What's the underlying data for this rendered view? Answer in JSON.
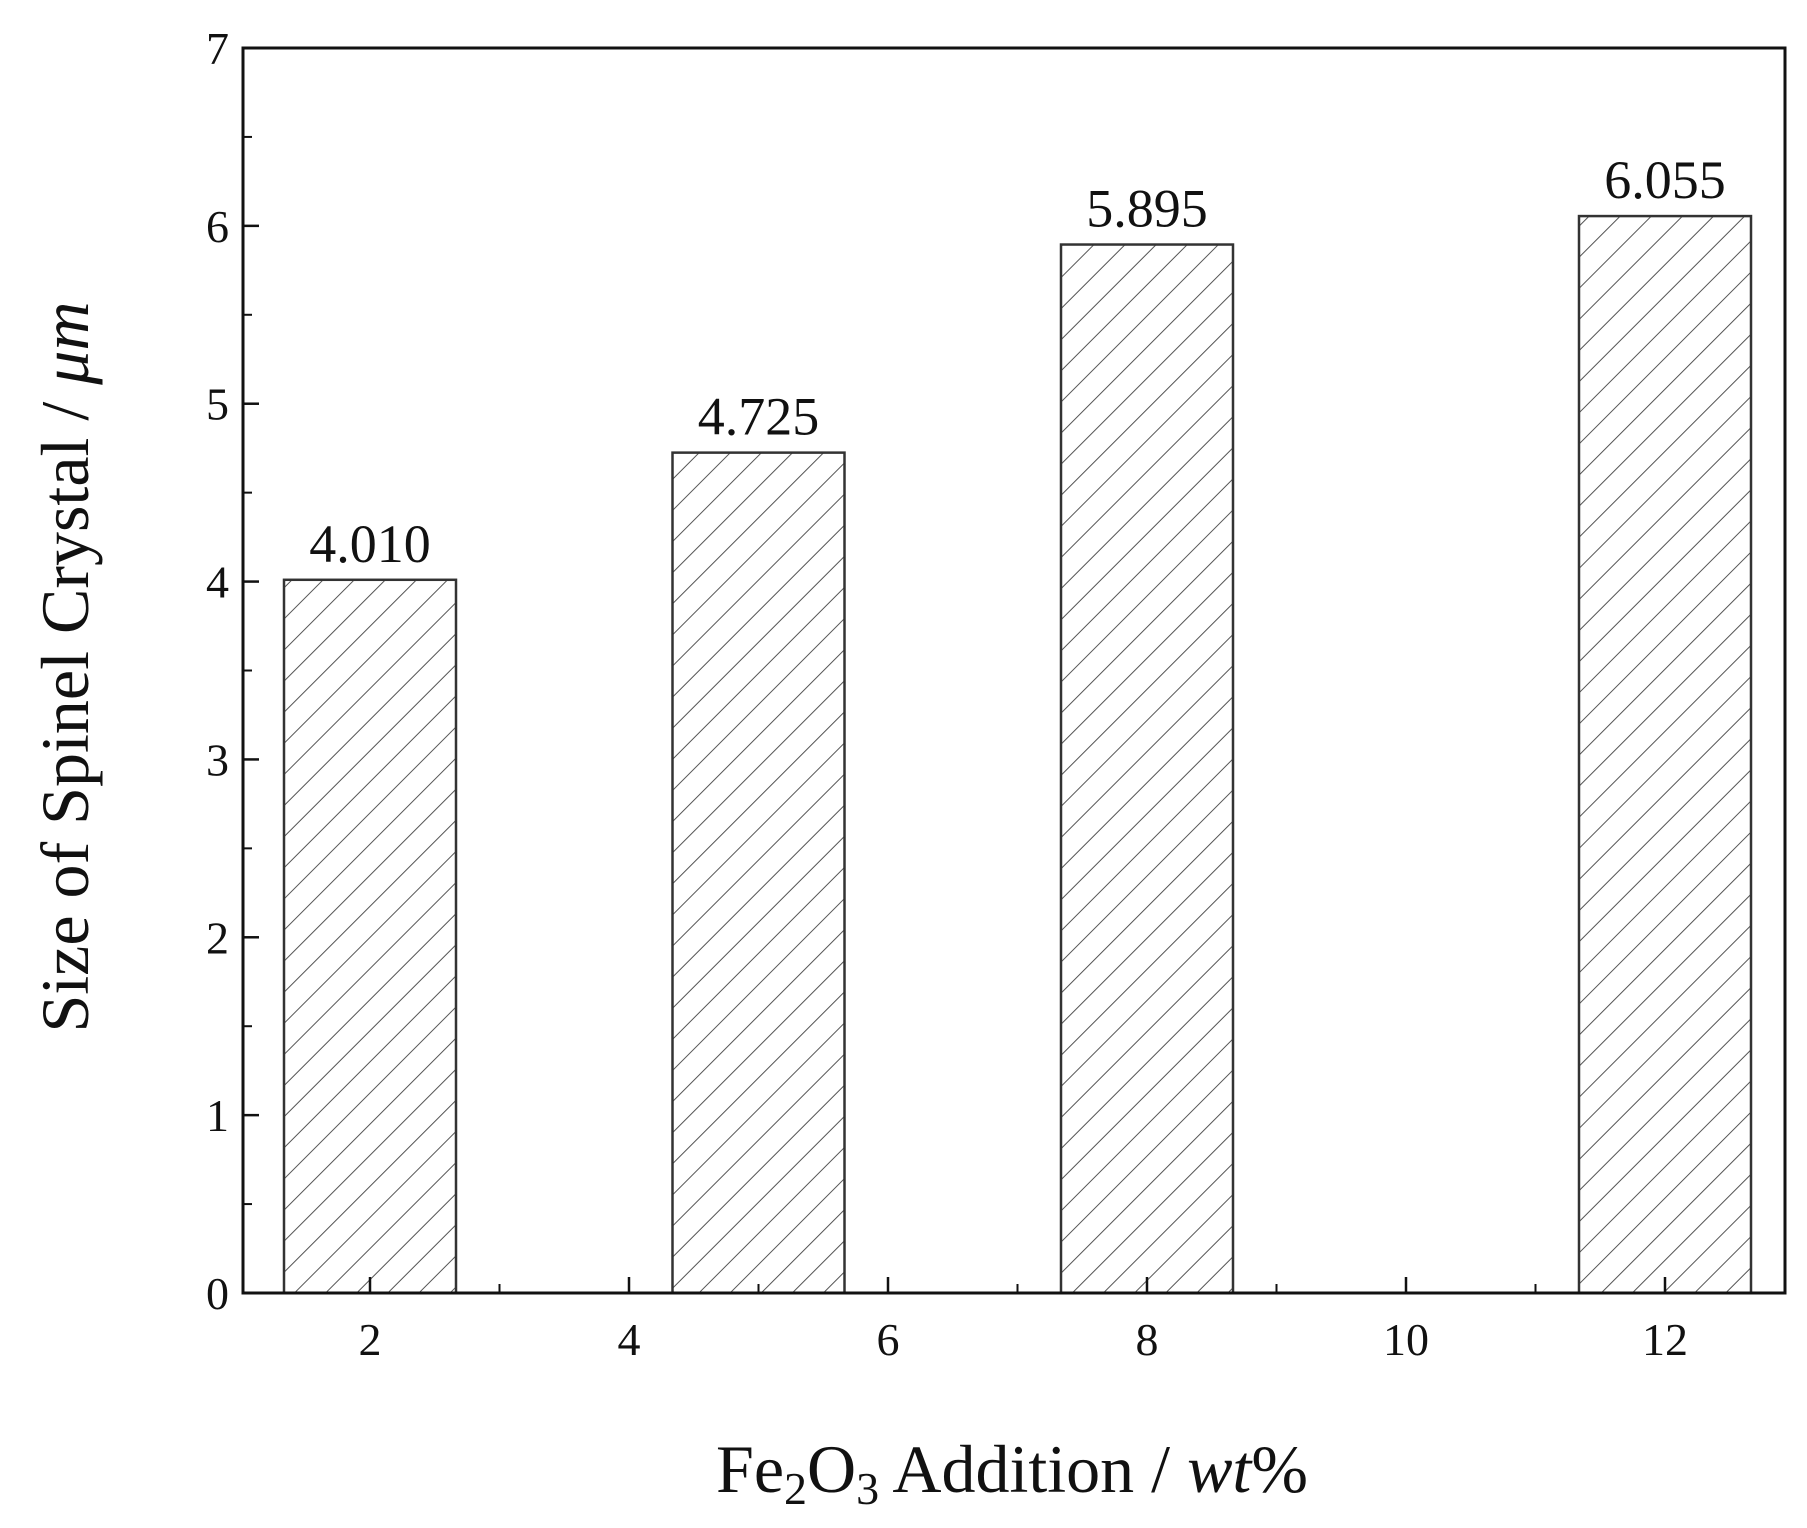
{
  "chart_data": {
    "type": "bar",
    "xlabel": {
      "pre": "Fe",
      "sub1": "2",
      "mid": "O",
      "sub2": "3",
      "post": " Addition / ",
      "unit": "wt",
      "tail": "%"
    },
    "ylabel": {
      "pre": "Size of Spinel Crystal / ",
      "unit": "μm"
    },
    "x": [
      2,
      8,
      5,
      12
    ],
    "x_order_note": "",
    "bars": [
      {
        "x": 2,
        "value": 4.01,
        "label": "4.010"
      },
      {
        "x": 5,
        "value": 4.725,
        "label": "4.725"
      },
      {
        "x": 8,
        "value": 5.895,
        "label": "5.895"
      },
      {
        "x": 12,
        "value": 6.055,
        "label": "6.055"
      }
    ],
    "xlim": [
      0,
      13
    ],
    "ylim": [
      0,
      7
    ],
    "xticks": [
      {
        "value": 2,
        "label": "2"
      },
      {
        "value": 4,
        "label": "4"
      },
      {
        "value": 6,
        "label": "6"
      },
      {
        "value": 8,
        "label": "8"
      },
      {
        "value": 10,
        "label": "10"
      },
      {
        "value": 12,
        "label": "12"
      }
    ],
    "yticks": [
      {
        "value": 0,
        "label": "0"
      },
      {
        "value": 1,
        "label": "1"
      },
      {
        "value": 2,
        "label": "2"
      },
      {
        "value": 3,
        "label": "3"
      },
      {
        "value": 4,
        "label": "4"
      },
      {
        "value": 5,
        "label": "5"
      },
      {
        "value": 6,
        "label": "6"
      },
      {
        "value": 7,
        "label": "7"
      }
    ],
    "bar_fill": "hatched",
    "colors": {
      "axis": "#111111",
      "bar_edge": "#333333",
      "hatch": "#555555"
    },
    "grid": false
  }
}
